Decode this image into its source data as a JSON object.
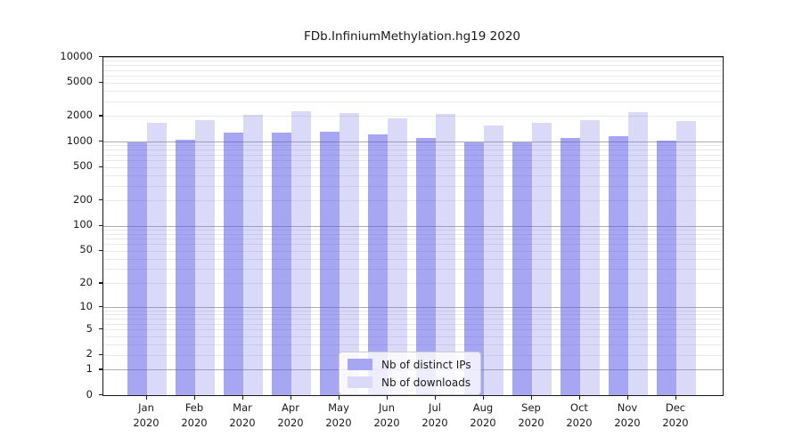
{
  "chart_data": {
    "type": "bar",
    "title": "FDb.InfiniumMethylation.hg19 2020",
    "categories": [
      "Jan 2020",
      "Feb 2020",
      "Mar 2020",
      "Apr 2020",
      "May 2020",
      "Jun 2020",
      "Jul 2020",
      "Aug 2020",
      "Sep 2020",
      "Oct 2020",
      "Nov 2020",
      "Dec 2020"
    ],
    "x_tick_months": [
      "Jan",
      "Feb",
      "Mar",
      "Apr",
      "May",
      "Jun",
      "Jul",
      "Aug",
      "Sep",
      "Oct",
      "Nov",
      "Dec"
    ],
    "x_tick_year": "2020",
    "series": [
      {
        "name": "Nb of distinct IPs",
        "color": "#a6a6f3",
        "bar_rgba": "rgba(84,84,232,0.52)",
        "values": [
          970,
          1050,
          1260,
          1290,
          1320,
          1200,
          1090,
          970,
          975,
          1090,
          1170,
          1030
        ]
      },
      {
        "name": "Nb of downloads",
        "color": "#dadaf8",
        "bar_rgba": "rgba(123,123,230,0.28)",
        "values": [
          1660,
          1780,
          2060,
          2280,
          2150,
          1900,
          2100,
          1550,
          1660,
          1800,
          2210,
          1740
        ]
      }
    ],
    "scale": "log1p (y position = log10(1+value))",
    "ylim": [
      0,
      10000
    ],
    "y_ticks": [
      0,
      1,
      2,
      5,
      10,
      20,
      50,
      100,
      200,
      500,
      1000,
      2000,
      5000,
      10000
    ],
    "grid": {
      "minor_color": "#e9e9e9",
      "major_color": "#ababab",
      "major_at": [
        1,
        10,
        100,
        1000,
        10000
      ]
    },
    "legend": {
      "position": "lower center, inside plot"
    },
    "colors": {
      "spine": "#1a1a1a",
      "text": "#1a1a1a",
      "background": "#ffffff"
    }
  }
}
